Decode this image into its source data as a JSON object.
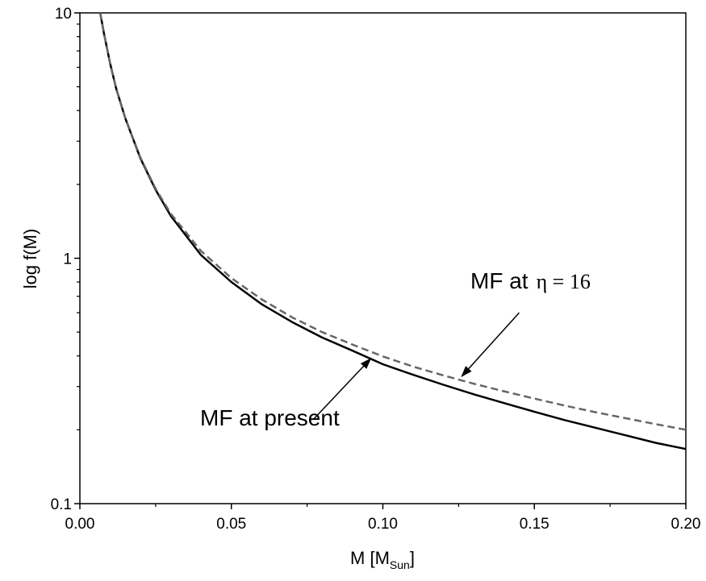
{
  "chart_data": {
    "type": "line",
    "xlabel_main": "M [M",
    "xlabel_sub": "Sun",
    "xlabel_close": "]",
    "ylabel": "log f(M)",
    "xlim": [
      0.0,
      0.2
    ],
    "ylim": [
      0.1,
      10
    ],
    "yscale": "log",
    "grid": false,
    "x_ticks": [
      "0.00",
      "0.05",
      "0.10",
      "0.15",
      "0.20"
    ],
    "y_ticks": [
      "0.1",
      "1",
      "10"
    ],
    "x_tick_values": [
      0.0,
      0.05,
      0.1,
      0.15,
      0.2
    ],
    "y_tick_values": [
      0.1,
      1,
      10
    ],
    "series": [
      {
        "style": "solid",
        "color": "#000000",
        "x": [
          0.0067,
          0.008,
          0.01,
          0.012,
          0.015,
          0.02,
          0.025,
          0.03,
          0.04,
          0.05,
          0.06,
          0.07,
          0.08,
          0.09,
          0.1,
          0.11,
          0.12,
          0.13,
          0.14,
          0.15,
          0.16,
          0.17,
          0.18,
          0.19,
          0.2
        ],
        "values": [
          10.0,
          8.2,
          6.2,
          4.9,
          3.72,
          2.55,
          1.9,
          1.49,
          1.03,
          0.8,
          0.65,
          0.55,
          0.475,
          0.42,
          0.37,
          0.335,
          0.305,
          0.279,
          0.257,
          0.237,
          0.219,
          0.204,
          0.19,
          0.177,
          0.167
        ]
      },
      {
        "style": "dashed",
        "color": "#666666",
        "x": [
          0.0067,
          0.008,
          0.01,
          0.012,
          0.015,
          0.02,
          0.025,
          0.03,
          0.04,
          0.05,
          0.06,
          0.07,
          0.08,
          0.09,
          0.1,
          0.11,
          0.12,
          0.13,
          0.14,
          0.15,
          0.16,
          0.17,
          0.18,
          0.19,
          0.2
        ],
        "values": [
          10.0,
          8.2,
          6.2,
          4.9,
          3.73,
          2.57,
          1.92,
          1.52,
          1.07,
          0.83,
          0.68,
          0.575,
          0.5,
          0.445,
          0.398,
          0.362,
          0.333,
          0.308,
          0.287,
          0.268,
          0.251,
          0.236,
          0.223,
          0.211,
          0.2
        ]
      }
    ],
    "annotations": {
      "present": {
        "text": "MF at present",
        "arrow_from": [
          0.077,
          0.22
        ],
        "arrow_to": [
          0.096,
          0.39
        ]
      },
      "eta": {
        "text_prefix": "MF at",
        "greek": "η = 16",
        "arrow_from": [
          0.145,
          0.6
        ],
        "arrow_to": [
          0.126,
          0.33
        ]
      }
    }
  }
}
